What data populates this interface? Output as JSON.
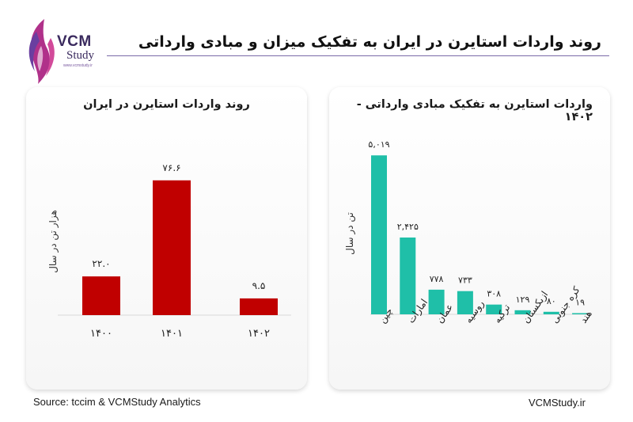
{
  "brand": {
    "name": "VCM",
    "sub": "Study",
    "site_small": "www.vcmstudy.ir"
  },
  "main_title": "روند واردات استایرن در ایران به تفکیک میزان و مبادی وارداتی",
  "colors": {
    "left_bar": "#c00000",
    "right_bar": "#1fbfa8",
    "accent": "#7a6aa8"
  },
  "chart_data": [
    {
      "type": "bar",
      "title": "روند واردات استایرن در ایران",
      "ylabel": "هزار تن در سال",
      "xlabel": "",
      "categories": [
        "۱۴۰۰",
        "۱۴۰۱",
        "۱۴۰۲"
      ],
      "values": [
        22.0,
        76.6,
        9.5
      ],
      "value_labels": [
        "۲۲.۰",
        "۷۶.۶",
        "۹.۵"
      ],
      "ylim": [
        0,
        90
      ],
      "grid": false,
      "color": "#c00000"
    },
    {
      "type": "bar",
      "title": "واردات استایرن به تفکیک مبادی وارداتی - ۱۴۰۲",
      "ylabel": "تن در سال",
      "xlabel": "",
      "categories": [
        "چین",
        "امارات",
        "عمان",
        "روسیه",
        "ترکیه",
        "ازبکستان",
        "کره جنوبی",
        "هند"
      ],
      "values": [
        5019,
        2425,
        778,
        733,
        308,
        129,
        80,
        19
      ],
      "value_labels": [
        "۵,۰۱۹",
        "۲,۴۲۵",
        "۷۷۸",
        "۷۳۳",
        "۳۰۸",
        "۱۲۹",
        "۸۰",
        "۱۹"
      ],
      "ylim": [
        0,
        5500
      ],
      "grid": false,
      "color": "#1fbfa8"
    }
  ],
  "footer": {
    "source": "Source: tccim & VCMStudy Analytics",
    "site": "VCMStudy.ir"
  }
}
